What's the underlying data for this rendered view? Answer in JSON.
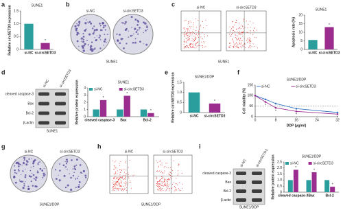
{
  "panel_letters": [
    "a",
    "b",
    "c",
    "d",
    "e",
    "f",
    "g",
    "h",
    "i"
  ],
  "panels": {
    "b": {
      "labels": [
        "si-NC",
        "si-circSETD3"
      ],
      "caption": "SUNE1"
    },
    "c": {
      "labels": [
        "si-NC",
        "si-circSETD3"
      ],
      "caption": "SUNE1"
    },
    "d": {
      "lanes": [
        "si-NC",
        "si-circSETD3"
      ],
      "proteins": [
        "cleaved caspase-3",
        "Bax",
        "Bcl-2",
        "β-actin"
      ],
      "caption": "SUNE1"
    },
    "g": {
      "labels": [
        "si-NC",
        "si-circSETD3"
      ],
      "caption": "SUNE1/DDP"
    },
    "h": {
      "labels": [
        "si-NC",
        "si-circSETD3"
      ],
      "caption": "SUNE1/DDP"
    },
    "i": {
      "lanes": [
        "si-NC",
        "si-circSETD3"
      ],
      "proteins": [
        "cleaved caspase-3",
        "Bax",
        "Bcl-2",
        "β-actin"
      ],
      "caption": "SUNE1/DDP"
    }
  },
  "chart_data": [
    {
      "type": "bar",
      "title": "SUNE1",
      "y_label": "Relative circSETD3 expression",
      "categories": [
        "si-NC",
        "si-circSETD3"
      ],
      "values": [
        1.0,
        0.25
      ],
      "colors": [
        "#2a9d9d",
        "#9b2d8f"
      ],
      "ylim": [
        0,
        1.5
      ],
      "yticks": [
        0,
        0.5,
        {
          "value": 1,
          "label": "1.0"
        },
        1.5
      ],
      "significance": "*"
    },
    {
      "type": "bar",
      "title": "SUNE1",
      "y_label": "Apoptosis rate (%)",
      "categories": [
        "si-NC",
        "si-circSETD3"
      ],
      "values": [
        5.5,
        13
      ],
      "colors": [
        "#2a9d9d",
        "#9b2d8f"
      ],
      "ylim": [
        0,
        20
      ],
      "yticks": [
        0,
        5,
        10,
        15,
        20
      ],
      "significance": "*"
    },
    {
      "type": "bar",
      "title": "SUNE1",
      "y_label": "Relative protein expression",
      "categories": [
        "cleaved caspase-3",
        "Bax",
        "Bcl-2"
      ],
      "series": [
        {
          "name": "si-NC",
          "color": "#2a9d9d",
          "values": [
            1,
            1,
            1
          ]
        },
        {
          "name": "si-circSETD3",
          "color": "#9b2d8f",
          "values": [
            2.3,
            2.9,
            0.5
          ]
        }
      ],
      "ylim": [
        0,
        4
      ],
      "yticks": [
        0,
        1,
        2,
        3,
        4
      ],
      "significance": "*"
    },
    {
      "type": "bar",
      "title": "SUNE1/DDP",
      "y_label": "Relative circSETD3 expression",
      "categories": [
        "si-NC",
        "si-circSETD3"
      ],
      "values": [
        1.0,
        0.45
      ],
      "colors": [
        "#2a9d9d",
        "#9b2d8f"
      ],
      "ylim": [
        0,
        1.5
      ],
      "yticks": [
        0,
        0.5,
        {
          "value": 1,
          "label": "1.0"
        },
        1.5
      ],
      "significance": "*"
    },
    {
      "type": "line",
      "title": "SUNE1/DDP",
      "x_label": "DDP (μg/ml)",
      "y_label": "Cell viability (%)",
      "x": [
        0,
        4,
        8,
        16,
        32
      ],
      "series": [
        {
          "name": "si-NC",
          "color": "#3a78c8",
          "values": [
            100,
            82,
            62,
            38,
            20
          ]
        },
        {
          "name": "si-circSETD3",
          "color": "#9b2d8f",
          "values": [
            100,
            70,
            42,
            25,
            12
          ]
        }
      ],
      "xlim": [
        0,
        32
      ],
      "xticks": [
        0,
        8,
        16,
        24,
        32
      ],
      "ylim": [
        0,
        150
      ],
      "yticks": [
        0,
        50,
        100,
        150
      ],
      "reference_line": 50,
      "significance": "*"
    },
    {
      "type": "bar",
      "title": "SUNE1/DDP",
      "y_label": "Relative protein expression",
      "categories": [
        "cleaved caspase-3",
        "Bax",
        "Bcl-2"
      ],
      "series": [
        {
          "name": "si-NC",
          "color": "#2a9d9d",
          "values": [
            1,
            1,
            1
          ]
        },
        {
          "name": "si-circSETD3",
          "color": "#9b2d8f",
          "values": [
            1.85,
            1.65,
            0.45
          ]
        }
      ],
      "ylim": [
        0,
        2.5
      ],
      "yticks": [
        0,
        0.5,
        {
          "value": 1,
          "label": "1.0"
        },
        1.5,
        {
          "value": 2,
          "label": "2.0"
        },
        2.5
      ],
      "significance": "*"
    }
  ]
}
